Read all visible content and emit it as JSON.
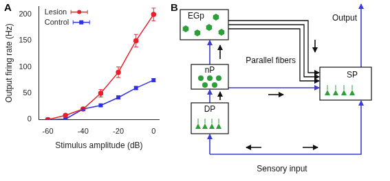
{
  "chart_data": {
    "type": "line",
    "panel_label": "A",
    "x_label": "Stimulus amplitude (dB)",
    "y_label": "Output firing rate (Hz)",
    "x": [
      -60,
      -50,
      -40,
      -30,
      -20,
      -10,
      0
    ],
    "series": [
      {
        "name": "Lesion",
        "color": "#e8202a",
        "marker": "circle",
        "values": [
          0,
          8,
          20,
          50,
          90,
          150,
          200
        ],
        "errors": [
          2,
          2,
          3,
          7,
          10,
          12,
          12
        ]
      },
      {
        "name": "Control",
        "color": "#2f2fe8",
        "marker": "square",
        "values": [
          0,
          1,
          20,
          27,
          42,
          60,
          75
        ],
        "errors": [
          1,
          1,
          2,
          2,
          3,
          3,
          3
        ]
      }
    ],
    "xlim": [
      -65,
      3
    ],
    "xticks": [
      -60,
      -40,
      -20,
      0
    ],
    "ylim": [
      0,
      215
    ],
    "yticks": [
      0,
      50,
      100,
      150,
      200
    ],
    "grid": false,
    "legend": "top-left"
  },
  "diagram": {
    "panel_label": "B",
    "nodes": [
      {
        "label": "EGp"
      },
      {
        "label": "nP"
      },
      {
        "label": "DP"
      },
      {
        "label": "SP"
      }
    ],
    "labels": {
      "parallel_fibers": "Parallel fibers",
      "output": "Output",
      "input": "Sensory input"
    }
  }
}
